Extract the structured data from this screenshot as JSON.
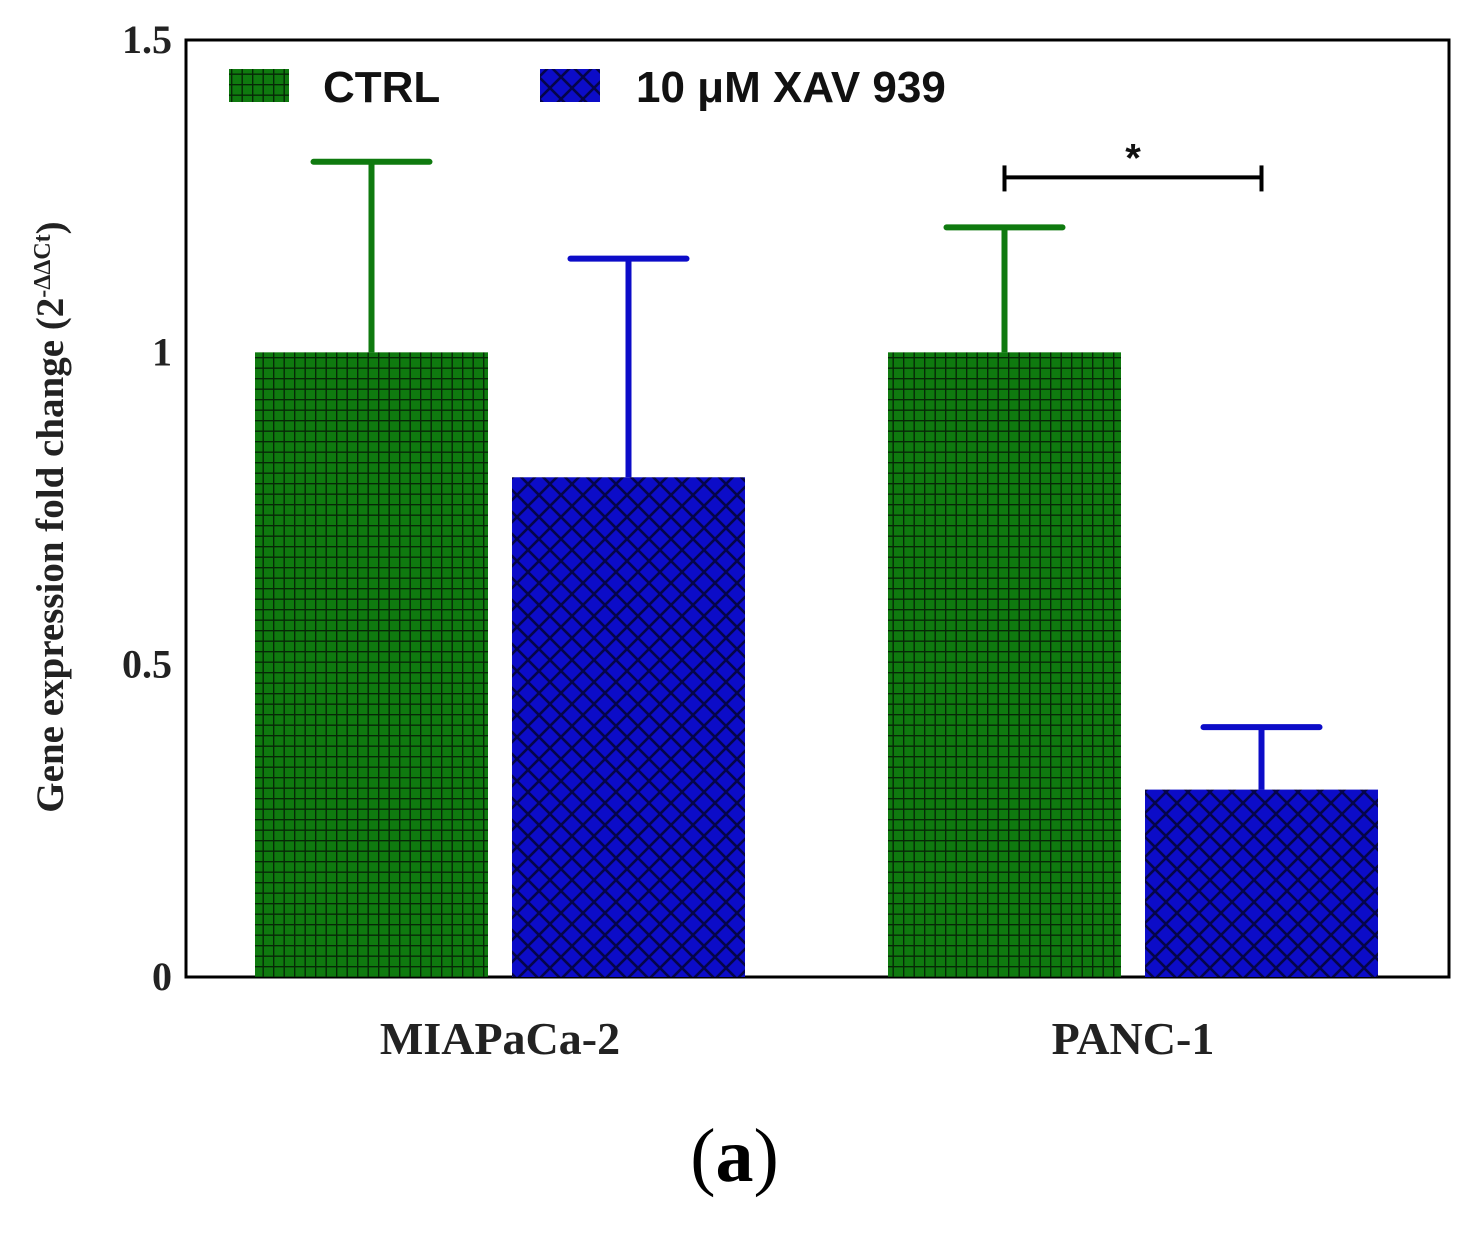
{
  "chart_data": {
    "type": "bar",
    "categories": [
      "MIAPaCa-2",
      "PANC-1"
    ],
    "series": [
      {
        "name": "CTRL",
        "color": "#0f7a0f",
        "pattern": "grid",
        "values": [
          1.0,
          1.0
        ],
        "errors": [
          0.305,
          0.2
        ]
      },
      {
        "name": "10 μM XAV 939",
        "color": "#0c0cc8",
        "pattern": "crosshatch",
        "values": [
          0.8,
          0.3
        ],
        "errors": [
          0.35,
          0.1
        ]
      }
    ],
    "ylabel": "Gene expression fold change",
    "ylabel_base": "2",
    "ylabel_exponent": "-ΔΔCt",
    "ylim": [
      0,
      1.5
    ],
    "yticks": [
      "0",
      "0.5",
      "1",
      "1.5"
    ],
    "ytick_values": [
      0,
      0.5,
      1,
      1.5
    ],
    "legend_position": "top-left",
    "significance": [
      {
        "category": "PANC-1",
        "label": "*",
        "y": 1.28
      }
    ]
  },
  "panel_label": {
    "open": "(",
    "letter": "a",
    "close": ")"
  }
}
